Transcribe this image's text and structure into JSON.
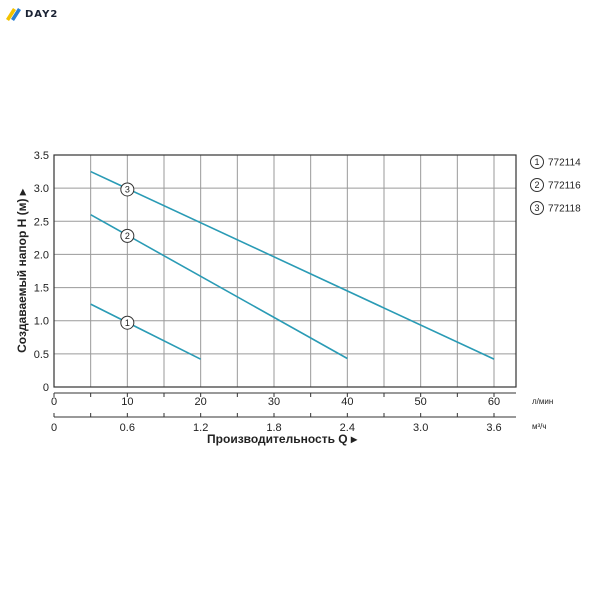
{
  "logo": {
    "text": "DAY2"
  },
  "chart_data": {
    "type": "line",
    "ylabel": "Создаваемый напор H (м)",
    "xlabel": "Производительность Q",
    "ylim": [
      0,
      3.5
    ],
    "yticks": [
      "0",
      "0.5",
      "1.0",
      "1.5",
      "2.0",
      "2.5",
      "3.0",
      "3.5"
    ],
    "xlim": [
      0,
      63
    ],
    "x_ticks_primary": [
      "0",
      "10",
      "20",
      "30",
      "40",
      "50",
      "60"
    ],
    "x_unit_primary": "л/мин",
    "x_ticks_secondary": [
      "0",
      "0.6",
      "1.2",
      "1.8",
      "2.4",
      "3.0",
      "3.6"
    ],
    "x_unit_secondary": "м³/ч",
    "grid": true,
    "legend_position": "right",
    "line_color": "#2a9bb5",
    "series": [
      {
        "name": "772114",
        "marker": "1",
        "x": [
          5,
          20
        ],
        "y": [
          1.25,
          0.42
        ],
        "marker_at": [
          10,
          0.97
        ]
      },
      {
        "name": "772116",
        "marker": "2",
        "x": [
          5,
          40
        ],
        "y": [
          2.6,
          0.43
        ],
        "marker_at": [
          10,
          2.28
        ]
      },
      {
        "name": "772118",
        "marker": "3",
        "x": [
          5,
          60
        ],
        "y": [
          3.25,
          0.42
        ],
        "marker_at": [
          10,
          2.98
        ]
      }
    ]
  }
}
